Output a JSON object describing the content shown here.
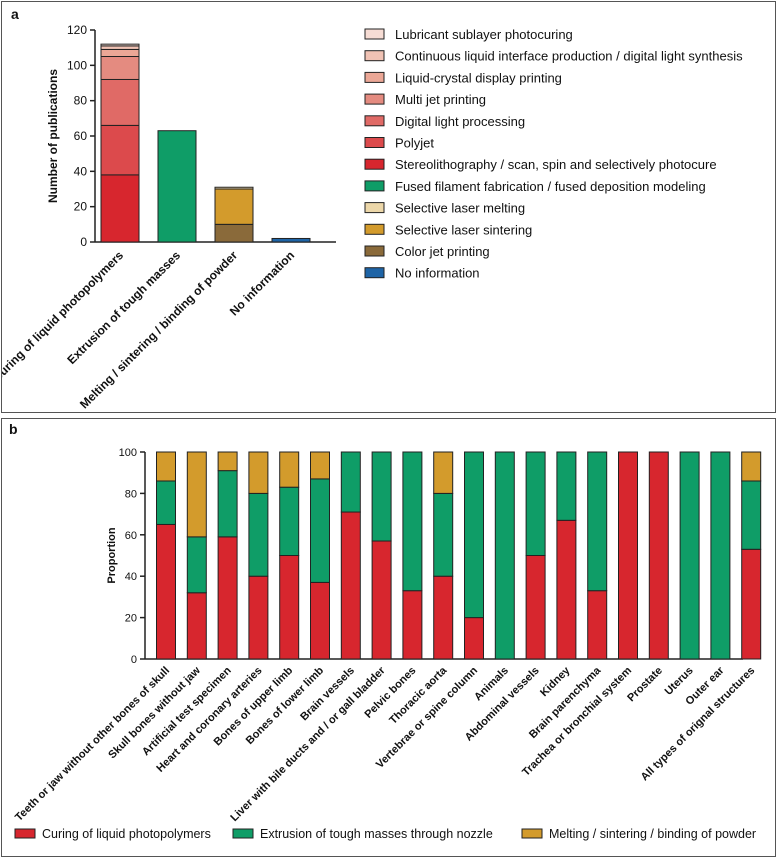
{
  "chart_data": [
    {
      "panel_label": "a",
      "type": "bar",
      "stacked": true,
      "ylabel": "Number of publications",
      "ylim": [
        0,
        120
      ],
      "yticks": [
        0,
        20,
        40,
        60,
        80,
        100,
        120
      ],
      "categories": [
        "Curing of liquid photopolymers",
        "Extrusion of tough masses",
        "Melting / sintering / binding of powder",
        "No information"
      ],
      "series": [
        {
          "name": "Stereolithography / scan, spin and selectively photocure",
          "color": "#d7262e",
          "values": [
            38,
            0,
            0,
            0
          ]
        },
        {
          "name": "Polyjet",
          "color": "#dc4a4c",
          "values": [
            28,
            0,
            0,
            0
          ]
        },
        {
          "name": "Digital light processing",
          "color": "#e06a66",
          "values": [
            26,
            0,
            0,
            0
          ]
        },
        {
          "name": "Multi jet printing",
          "color": "#e48b80",
          "values": [
            13,
            0,
            0,
            0
          ]
        },
        {
          "name": "Liquid-crystal display printing",
          "color": "#eba796",
          "values": [
            4,
            0,
            0,
            0
          ]
        },
        {
          "name": "Continuous liquid interface production / digital light synthesis",
          "color": "#f0c2b4",
          "values": [
            2,
            0,
            0,
            0
          ]
        },
        {
          "name": "Lubricant sublayer photocuring",
          "color": "#f6dcd4",
          "values": [
            1,
            0,
            0,
            0
          ]
        },
        {
          "name": "Fused filament fabrication / fused deposition modeling",
          "color": "#0f9d67",
          "values": [
            0,
            63,
            0,
            0
          ]
        },
        {
          "name": "Color jet printing",
          "color": "#8a6a3a",
          "values": [
            0,
            0,
            10,
            0
          ]
        },
        {
          "name": "Selective laser sintering",
          "color": "#d39b2c",
          "values": [
            0,
            0,
            20,
            0
          ]
        },
        {
          "name": "Selective laser melting",
          "color": "#ecd7a9",
          "values": [
            0,
            0,
            1,
            0
          ]
        },
        {
          "name": "No information",
          "color": "#1e64a6",
          "values": [
            0,
            0,
            0,
            2
          ]
        }
      ],
      "legend_order": [
        "Lubricant sublayer photocuring",
        "Continuous liquid interface production / digital light synthesis",
        "Liquid-crystal display printing",
        "Multi jet printing",
        "Digital light processing",
        "Polyjet",
        "Stereolithography / scan, spin and selectively photocure",
        "Fused filament fabrication / fused deposition modeling",
        "Selective laser melting",
        "Selective laser sintering",
        "Color jet printing",
        "No information"
      ],
      "legend_position": "right"
    },
    {
      "panel_label": "b",
      "type": "bar",
      "stacked": true,
      "ylabel": "Proportion",
      "ylim": [
        0,
        100
      ],
      "yticks": [
        0,
        20,
        40,
        60,
        80,
        100
      ],
      "categories": [
        "Teeth or jaw without other bones of skull",
        "Skull bones without jaw",
        "Artificial test specimen",
        "Heart and coronary arteries",
        "Bones of upper limb",
        "Bones of lower limb",
        "Brain vessels",
        "Liver with bile ducts and / or gall bladder",
        "Pelvic bones",
        "Thoracic aorta",
        "Vertebrae or spine column",
        "Animals",
        "Abdominal vessels",
        "Kidney",
        "Brain parenchyma",
        "Trachea or bronchial system",
        "Prostate",
        "Uterus",
        "Outer ear",
        "All types of orignal structures"
      ],
      "series": [
        {
          "name": "Curing of liquid photopolymers",
          "color": "#d7262e",
          "values": [
            65,
            32,
            59,
            40,
            50,
            37,
            71,
            57,
            33,
            40,
            20,
            0,
            50,
            67,
            33,
            100,
            100,
            0,
            0,
            53
          ]
        },
        {
          "name": "Extrusion of tough masses through nozzle",
          "color": "#0f9d67",
          "values": [
            21,
            27,
            32,
            40,
            33,
            50,
            29,
            43,
            67,
            40,
            80,
            100,
            50,
            33,
            67,
            0,
            0,
            100,
            100,
            33
          ]
        },
        {
          "name": "Melting / sintering / binding of powder",
          "color": "#d39b2c",
          "values": [
            14,
            41,
            9,
            20,
            17,
            13,
            0,
            0,
            0,
            20,
            0,
            0,
            0,
            0,
            0,
            0,
            0,
            0,
            0,
            14
          ]
        }
      ],
      "legend_position": "bottom"
    }
  ]
}
